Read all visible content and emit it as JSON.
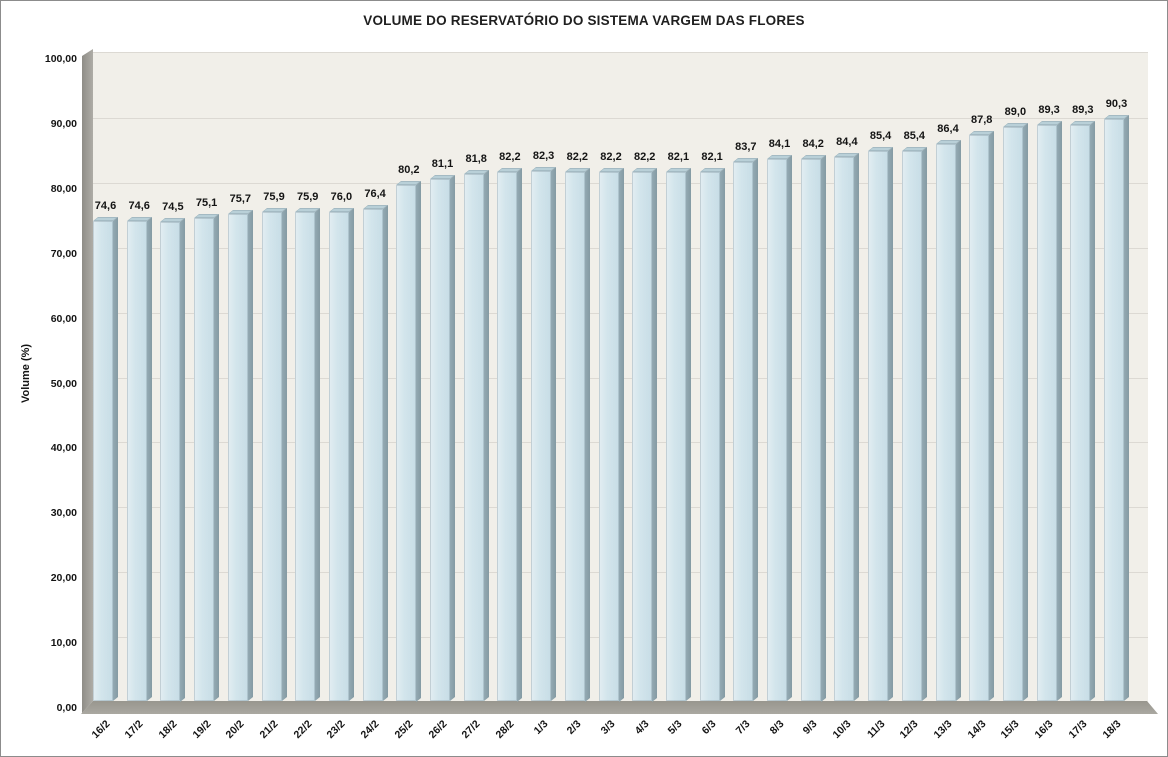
{
  "window": {
    "background": "#ffffff",
    "border_color": "#8c8c8c"
  },
  "chart_data": {
    "type": "bar",
    "effect": "3d-column",
    "title": "VOLUME DO RESERVATÓRIO DO SISTEMA VARGEM DAS FLORES",
    "xlabel": "",
    "ylabel": "Volume (%)",
    "ylim": [
      0,
      100
    ],
    "y_tick_step": 10,
    "y_tick_labels": [
      "0,00",
      "10,00",
      "20,00",
      "30,00",
      "40,00",
      "50,00",
      "60,00",
      "70,00",
      "80,00",
      "90,00",
      "100,00"
    ],
    "grid": "horizontal-only",
    "legend": "none",
    "categories": [
      "16/2",
      "17/2",
      "18/2",
      "19/2",
      "20/2",
      "21/2",
      "22/2",
      "23/2",
      "24/2",
      "25/2",
      "26/2",
      "27/2",
      "28/2",
      "1/3",
      "2/3",
      "3/3",
      "4/3",
      "5/3",
      "6/3",
      "7/3",
      "8/3",
      "9/3",
      "10/3",
      "11/3",
      "12/3",
      "13/3",
      "14/3",
      "15/3",
      "16/3",
      "17/3",
      "18/3"
    ],
    "values": [
      74.6,
      74.6,
      74.5,
      75.1,
      75.7,
      75.9,
      75.9,
      76.0,
      76.4,
      80.2,
      81.1,
      81.8,
      82.2,
      82.3,
      82.2,
      82.2,
      82.2,
      82.1,
      82.1,
      83.7,
      84.1,
      84.2,
      84.4,
      85.4,
      85.4,
      86.4,
      87.8,
      89.0,
      89.3,
      89.3,
      90.3
    ],
    "point_labels": [
      "74,6",
      "74,6",
      "74,5",
      "75,1",
      "75,7",
      "75,9",
      "75,9",
      "76,0",
      "76,4",
      "80,2",
      "81,1",
      "81,8",
      "82,2",
      "82,3",
      "82,2",
      "82,2",
      "82,2",
      "82,1",
      "82,1",
      "83,7",
      "84,1",
      "84,2",
      "84,4",
      "85,4",
      "85,4",
      "86,4",
      "87,8",
      "89,0",
      "89,3",
      "89,3",
      "90,3"
    ],
    "colors": {
      "bar_front": "#d3e5ec",
      "bar_front_highlight": "#e3eef2",
      "bar_side": "#8ca2ab",
      "bar_top": "#b9d0d8",
      "plot_background": "#f1efe9",
      "gridline": "#dcd9d3",
      "wall_floor": "#9e9c96",
      "label_text": "#141414"
    }
  }
}
